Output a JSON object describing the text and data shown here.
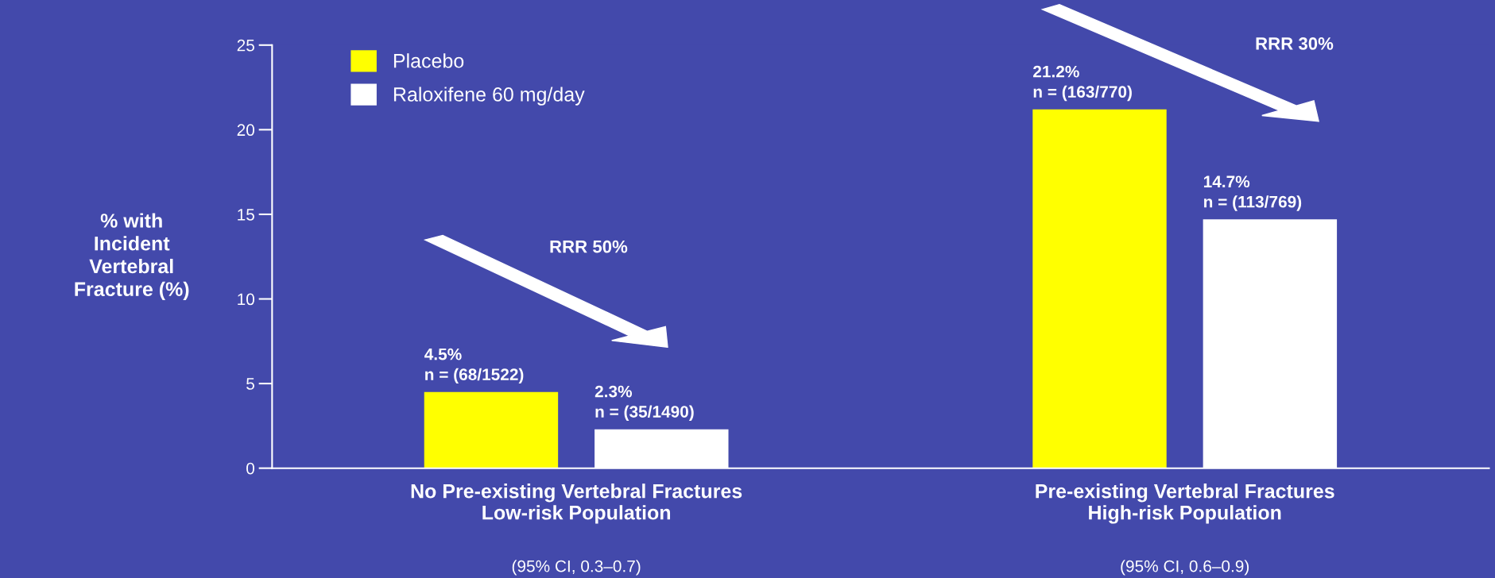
{
  "chart_data": {
    "type": "bar",
    "ylabel": "% with\nIncident\nVertebral\nFracture (%)",
    "categories": [
      "No Pre-existing Vertebral Fractures\nLow-risk Population",
      "Pre-existing Vertebral Fractures\nHigh-risk Population"
    ],
    "series": [
      {
        "name": "Placebo",
        "color": "#ffff00",
        "values": [
          4.5,
          21.2
        ],
        "value_labels": [
          "4.5%\nn = (68/1522)",
          "21.2%\nn = (163/770)"
        ]
      },
      {
        "name": "Raloxifene 60 mg/day",
        "color": "#ffffff",
        "values": [
          2.3,
          14.7
        ],
        "value_labels": [
          "2.3%\nn = (35/1490)",
          "14.7%\nn = (113/769)"
        ]
      }
    ],
    "ylim": [
      0,
      25
    ],
    "yticks": [
      0,
      5,
      10,
      15,
      20,
      25
    ],
    "annotations": [
      "RRR 50%",
      "RRR 30%",
      "(95% CI, 0.3–0.7)",
      "(95% CI, 0.6–0.9)"
    ],
    "legend": "top left",
    "grid": false
  }
}
